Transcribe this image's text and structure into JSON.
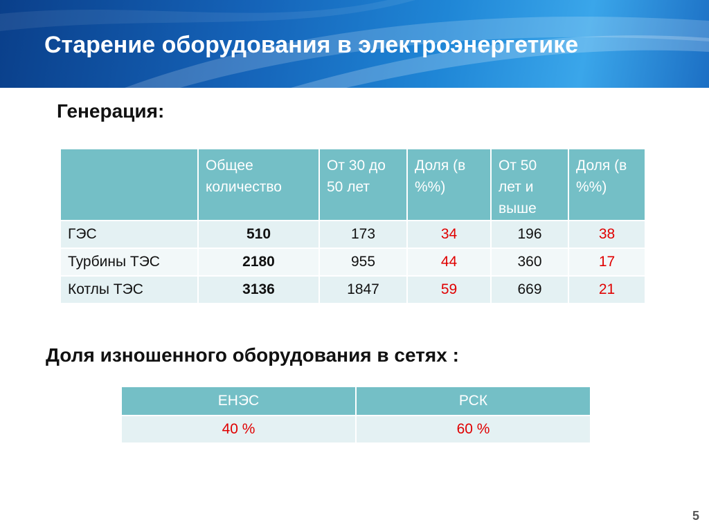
{
  "slide": {
    "title": "Старение оборудования в электроэнергетике",
    "page_number": "5"
  },
  "generation": {
    "heading": "Генерация:",
    "headers": [
      "",
      "Общее количество",
      "От 30 до 50 лет",
      "Доля (в %%)",
      "От 50 лет и выше",
      "Доля (в %%)"
    ],
    "rows": [
      {
        "name": "ГЭС",
        "total": "510",
        "age_30_50": "173",
        "share_30_50": "34",
        "age_50_plus": "196",
        "share_50_plus": "38"
      },
      {
        "name": "Турбины ТЭС",
        "total": "2180",
        "age_30_50": "955",
        "share_30_50": "44",
        "age_50_plus": "360",
        "share_50_plus": "17"
      },
      {
        "name": "Котлы ТЭС",
        "total": "3136",
        "age_30_50": "1847",
        "share_30_50": "59",
        "age_50_plus": "669",
        "share_50_plus": "21"
      }
    ]
  },
  "networks": {
    "heading": "Доля изношенного оборудования в сетях :",
    "headers": [
      "ЕНЭС",
      "РСК"
    ],
    "values": [
      "40 %",
      "60 %"
    ]
  },
  "colors": {
    "header_band": "#1563b8",
    "table_header": "#74bfc6",
    "row_fill": "#e4f1f3",
    "highlight_text": "#e00000"
  }
}
